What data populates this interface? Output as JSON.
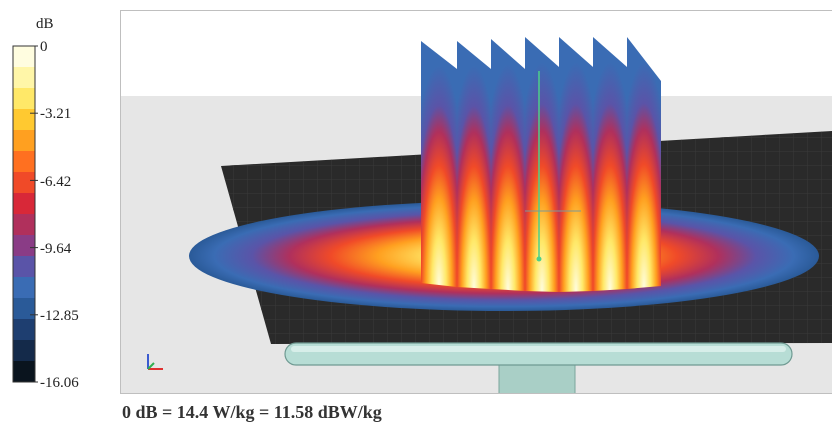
{
  "colorbar": {
    "unit": "dB",
    "ticks": [
      "0",
      "-3.21",
      "-6.42",
      "-9.64",
      "-12.85",
      "-16.06"
    ],
    "colors": [
      "#fffde0",
      "#fff6a8",
      "#ffe868",
      "#ffc930",
      "#ffa020",
      "#ff7020",
      "#f04a28",
      "#d82838",
      "#b0305c",
      "#8a3c86",
      "#5a54a8",
      "#3a6cb4",
      "#2a5a98",
      "#1e3e70",
      "#142a4a",
      "#0a141e"
    ]
  },
  "viewport": {
    "background": "#e6e6e6",
    "ground_plane_color": "#2a2a2a",
    "fins": 7
  },
  "caption": "0 dB = 14.4 W/kg = 11.58 dBW/kg"
}
